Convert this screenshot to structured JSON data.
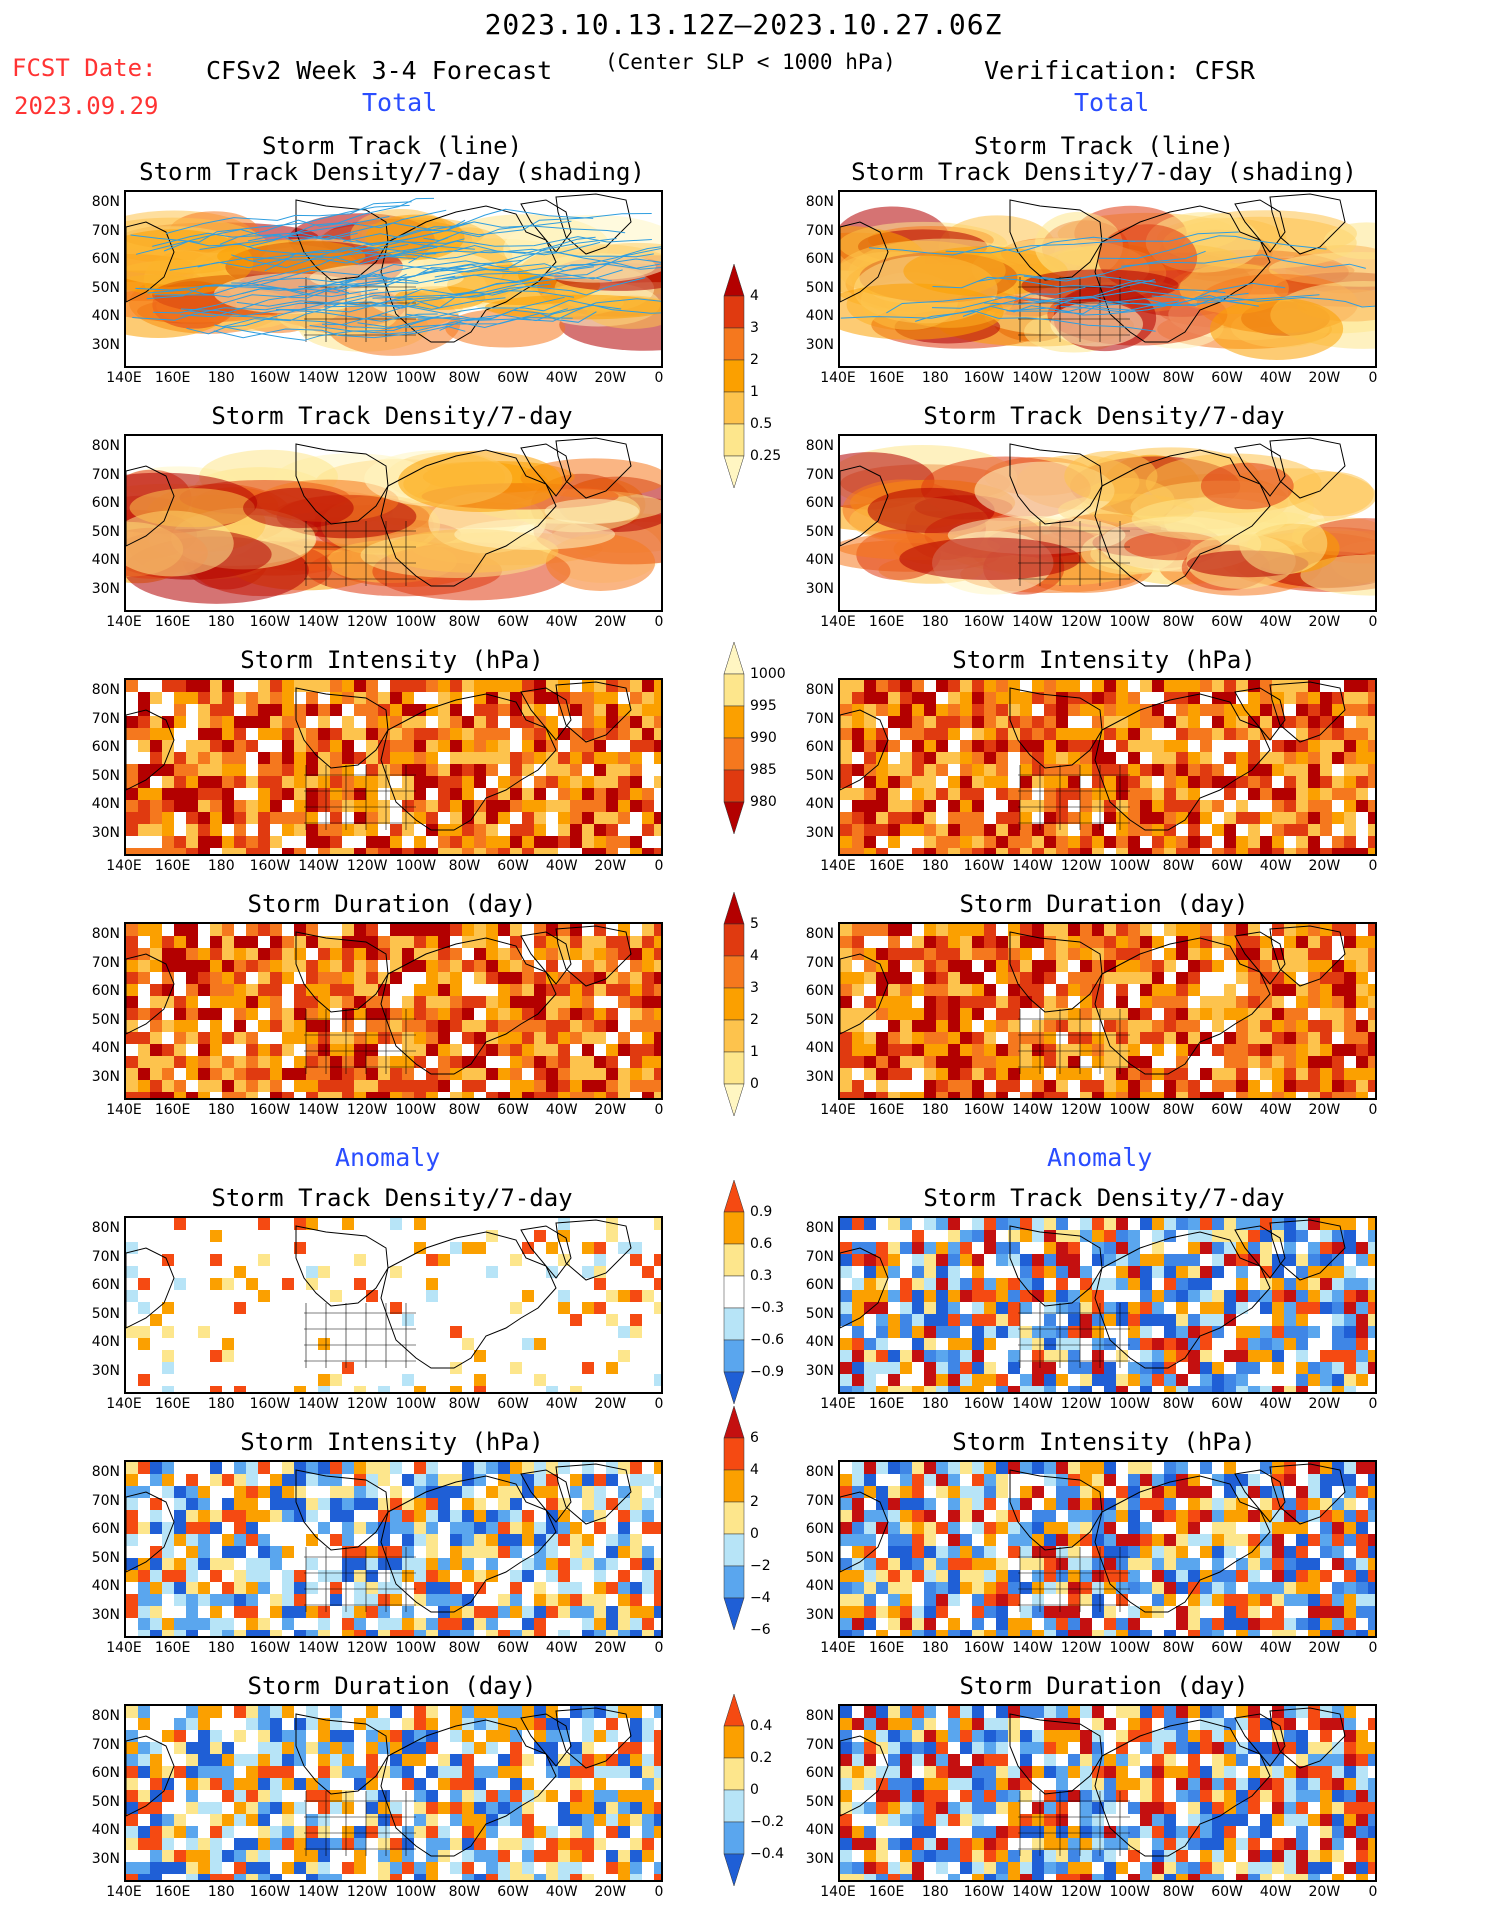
{
  "header": {
    "period": "2023.10.13.12Z–2023.10.27.06Z",
    "fcst_label": "FCST Date:",
    "fcst_date": "2023.09.29",
    "left_title": "CFSv2 Week 3-4 Forecast",
    "criterion": "(Center SLP < 1000 hPa)",
    "right_title": "Verification: CFSR",
    "total_label": "Total",
    "anomaly_label": "Anomaly"
  },
  "panel_titles": {
    "track_l1": "Storm Track (line)",
    "track_l2": "Storm Track Density/7-day (shading)",
    "density": "Storm Track Density/7-day",
    "intensity": "Storm Intensity (hPa)",
    "duration": "Storm Duration (day)"
  },
  "axes": {
    "lat_labels": [
      "80N",
      "70N",
      "60N",
      "50N",
      "40N",
      "30N"
    ],
    "lon_labels": [
      "140E",
      "160E",
      "180",
      "160W",
      "140W",
      "120W",
      "100W",
      "80W",
      "60W",
      "40W",
      "20W",
      "0"
    ]
  },
  "colorbars": [
    {
      "name": "density-total",
      "labels": [
        "4",
        "3",
        "2",
        "1",
        "0.5",
        "0.25"
      ],
      "colors": [
        "#b30000",
        "#e03a10",
        "#f5781e",
        "#fba000",
        "#fdc34d",
        "#fde68c",
        "#fff6c2"
      ]
    },
    {
      "name": "intensity-total",
      "labels": [
        "1000",
        "995",
        "990",
        "985",
        "980"
      ],
      "colors": [
        "#fff6c2",
        "#fde68c",
        "#fba000",
        "#f5781e",
        "#e03a10",
        "#b30000"
      ]
    },
    {
      "name": "duration-total",
      "labels": [
        "5",
        "4",
        "3",
        "2",
        "1",
        "0"
      ],
      "colors": [
        "#b30000",
        "#e03a10",
        "#f5781e",
        "#fba000",
        "#fdc34d",
        "#fde68c",
        "#fff6c2"
      ]
    },
    {
      "name": "density-anomaly",
      "labels": [
        "0.9",
        "0.6",
        "0.3",
        "−0.3",
        "−0.6",
        "−0.9"
      ],
      "colors": [
        "#f54a12",
        "#fba000",
        "#fde68c",
        "#ffffff",
        "#b7e4f7",
        "#5aa6ee",
        "#1f5fd6"
      ]
    },
    {
      "name": "intensity-anomaly",
      "labels": [
        "6",
        "4",
        "2",
        "0",
        "−2",
        "−4",
        "−6"
      ],
      "colors": [
        "#c41010",
        "#f54a12",
        "#fba000",
        "#fde68c",
        "#b7e4f7",
        "#5aa6ee",
        "#1f5fd6"
      ]
    },
    {
      "name": "duration-anomaly",
      "labels": [
        "0.4",
        "0.2",
        "0",
        "−0.2",
        "−0.4"
      ],
      "colors": [
        "#f54a12",
        "#fba000",
        "#fde68c",
        "#b7e4f7",
        "#5aa6ee",
        "#1f5fd6"
      ]
    }
  ],
  "colors": {
    "title_red": "#ff3333",
    "label_blue": "#2a4dff",
    "track_line": "#2f9ee0"
  }
}
